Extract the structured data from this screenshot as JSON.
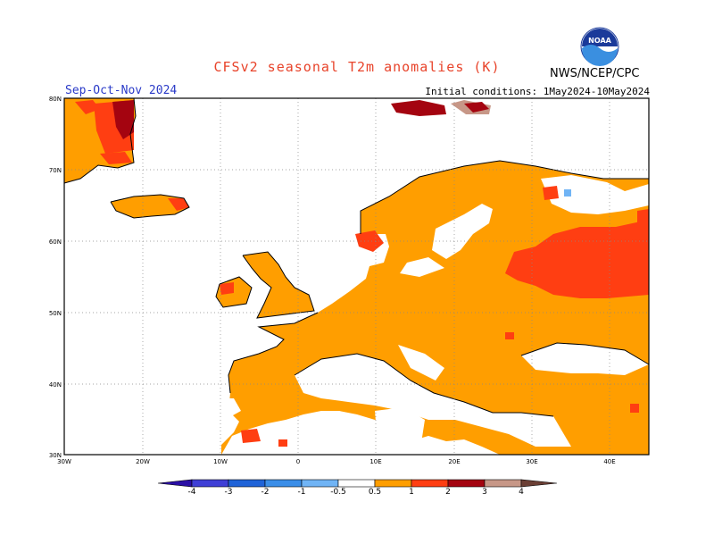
{
  "title": "CFSv2 seasonal T2m anomalies (K)",
  "season": "Sep-Oct-Nov 2024",
  "initial_conditions": "Initial conditions: 1May2024-10May2024",
  "agency": "NWS/NCEP/CPC",
  "logo_text": "NOAA",
  "lat_labels": [
    "80N",
    "70N",
    "60N",
    "50N",
    "40N",
    "30N"
  ],
  "lon_labels": [
    "30W",
    "20W",
    "10W",
    "0",
    "10E",
    "20E",
    "30E",
    "40E"
  ],
  "colorbar": {
    "labels": [
      "-4",
      "-3",
      "-2",
      "-1",
      "-0.5",
      "0.5",
      "1",
      "2",
      "3",
      "4"
    ],
    "colors": [
      "#2a0fa5",
      "#3f3fd6",
      "#1f63d8",
      "#3b8ee8",
      "#70b4f5",
      "#ffffff",
      "#ff9e00",
      "#ff3e12",
      "#a40410",
      "#c79787",
      "#6b3f35"
    ]
  },
  "map_colors": {
    "anom_0_5_1": "#ff9e00",
    "anom_1_2": "#ff3e12",
    "anom_2_3": "#a40410",
    "anom_3_4": "#c79787",
    "anom_neg": "#70b4f5"
  }
}
